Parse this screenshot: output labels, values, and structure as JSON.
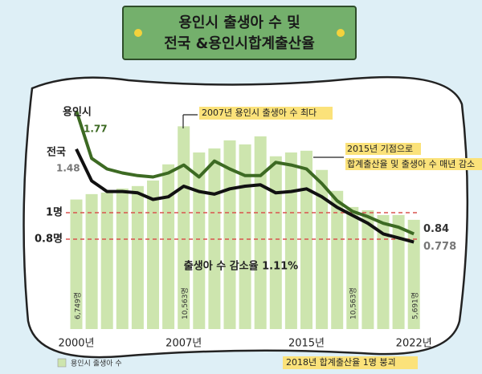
{
  "chart_data": {
    "type": "bar_line",
    "title_lines": [
      "용인시 출생아 수 및",
      "전국 &용인시합계출산율"
    ],
    "categories": [
      "2000년",
      null,
      null,
      null,
      null,
      null,
      null,
      "2007년",
      null,
      null,
      null,
      null,
      null,
      null,
      null,
      "2015년",
      null,
      null,
      null,
      null,
      null,
      null,
      "2022년"
    ],
    "bars": {
      "name": "용인시 출생아 수",
      "color": "#cde5ae",
      "axis": "y2",
      "values": [
        6749,
        7030,
        7110,
        7320,
        7450,
        7740,
        8580,
        10563,
        9200,
        9410,
        9830,
        9620,
        10040,
        9000,
        9200,
        9290,
        8290,
        7200,
        6360,
        6190,
        5940,
        5940,
        5691
      ],
      "value_labels": [
        "6,749명",
        null,
        null,
        null,
        null,
        null,
        null,
        "10,563명",
        null,
        null,
        null,
        null,
        null,
        null,
        null,
        null,
        null,
        null,
        null,
        null,
        null,
        null,
        "5,691명"
      ]
    },
    "series": [
      {
        "name": "용인시",
        "color": "#3d6a23",
        "values": [
          1.77,
          1.41,
          1.33,
          1.3,
          1.28,
          1.27,
          1.3,
          1.36,
          1.27,
          1.39,
          1.33,
          1.28,
          1.28,
          1.38,
          1.36,
          1.33,
          1.22,
          1.09,
          1.01,
          0.97,
          0.92,
          0.89,
          0.84
        ]
      },
      {
        "name": "전국",
        "color": "#111111",
        "values": [
          1.48,
          1.24,
          1.16,
          1.16,
          1.15,
          1.1,
          1.12,
          1.2,
          1.16,
          1.14,
          1.18,
          1.2,
          1.21,
          1.15,
          1.16,
          1.18,
          1.12,
          1.04,
          0.98,
          0.92,
          0.84,
          0.81,
          0.778
        ]
      }
    ],
    "ylim": [
      0.2,
      1.8
    ],
    "y2lim": [
      0,
      12000
    ],
    "reference_lines": [
      {
        "value": 1,
        "label": "1명"
      },
      {
        "value": 0.8,
        "label": "0.8명"
      }
    ],
    "reference_color": "#d9534f",
    "annotations": [
      "2007년 용인시 출생아 수 최다",
      "2015년 기점으로",
      "합계출산율 및 출생아 수 매년 감소",
      "출생아 수 감소율 1.11%",
      "10,563명",
      "2018년 합계출산율 1명 붕괴"
    ]
  }
}
